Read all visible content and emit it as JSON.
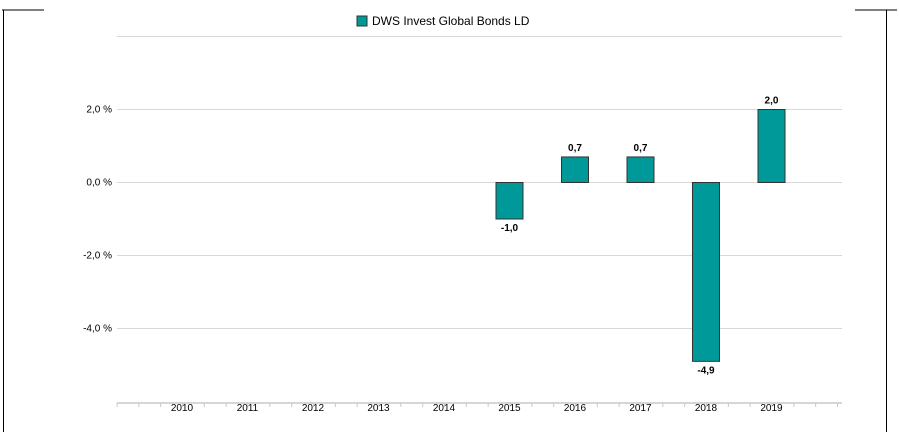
{
  "chart_data": {
    "type": "bar",
    "legend": {
      "label": "DWS Invest Global Bonds  LD",
      "placement": "top-center",
      "color": "#009999"
    },
    "categories": [
      "2010",
      "2011",
      "2012",
      "2013",
      "2014",
      "2015",
      "2016",
      "2017",
      "2018",
      "2019"
    ],
    "series": [
      {
        "name": "DWS Invest Global Bonds  LD",
        "values": [
          null,
          null,
          null,
          null,
          null,
          -1.0,
          0.7,
          0.7,
          -4.9,
          2.0
        ],
        "labels": [
          "",
          "",
          "",
          "",
          "",
          "-1,0",
          "0,7",
          "0,7",
          "-4,9",
          "2,0"
        ]
      }
    ],
    "ylim": [
      -5.8,
      4.0
    ],
    "yticks": [
      {
        "value": 2.0,
        "label": "2,0 %"
      },
      {
        "value": 0.0,
        "label": "0,0 %"
      },
      {
        "value": -2.0,
        "label": "-2,0 %"
      },
      {
        "value": -4.0,
        "label": "-4,0 %"
      }
    ],
    "grid": true,
    "bar_color": "#009999",
    "bar_stroke": "#333333",
    "grid_color": "#d8d8d8"
  }
}
